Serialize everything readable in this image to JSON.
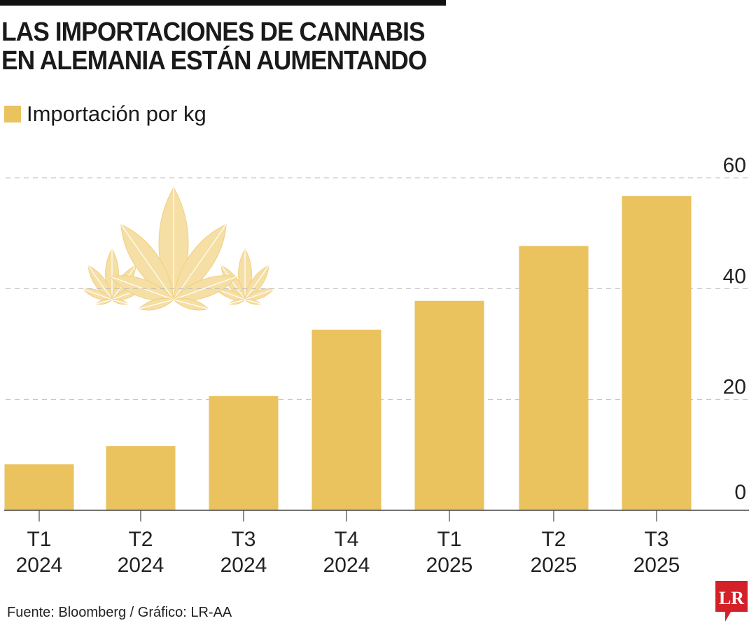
{
  "title_lines": [
    "LAS IMPORTACIONES DE CANNABIS",
    "EN ALEMANIA ESTÁN AUMENTANDO"
  ],
  "source": "Fuente:  Bloomberg / Gráfico: LR-AA",
  "logo_text": "LR",
  "colors": {
    "bar": "#EAC25E",
    "leaf": "#F6DFA4",
    "logo": "#D42027"
  },
  "chart_data": {
    "type": "bar",
    "title": "LAS IMPORTACIONES DE CANNABIS EN ALEMANIA ESTÁN AUMENTANDO",
    "categories": [
      [
        "T1",
        "2024"
      ],
      [
        "T2",
        "2024"
      ],
      [
        "T3",
        "2024"
      ],
      [
        "T4",
        "2024"
      ],
      [
        "T1",
        "2025"
      ],
      [
        "T2",
        "2025"
      ],
      [
        "T3",
        "2025"
      ]
    ],
    "series": [
      {
        "name": "Importación por kg",
        "values": [
          8.3,
          11.6,
          20.6,
          32.6,
          37.8,
          47.7,
          56.7
        ]
      }
    ],
    "yticks": [
      "0",
      "20",
      "40",
      "60"
    ],
    "ylim": [
      0,
      60
    ],
    "grid": true,
    "yaxis_side": "right",
    "legend_placement": "top-left"
  }
}
